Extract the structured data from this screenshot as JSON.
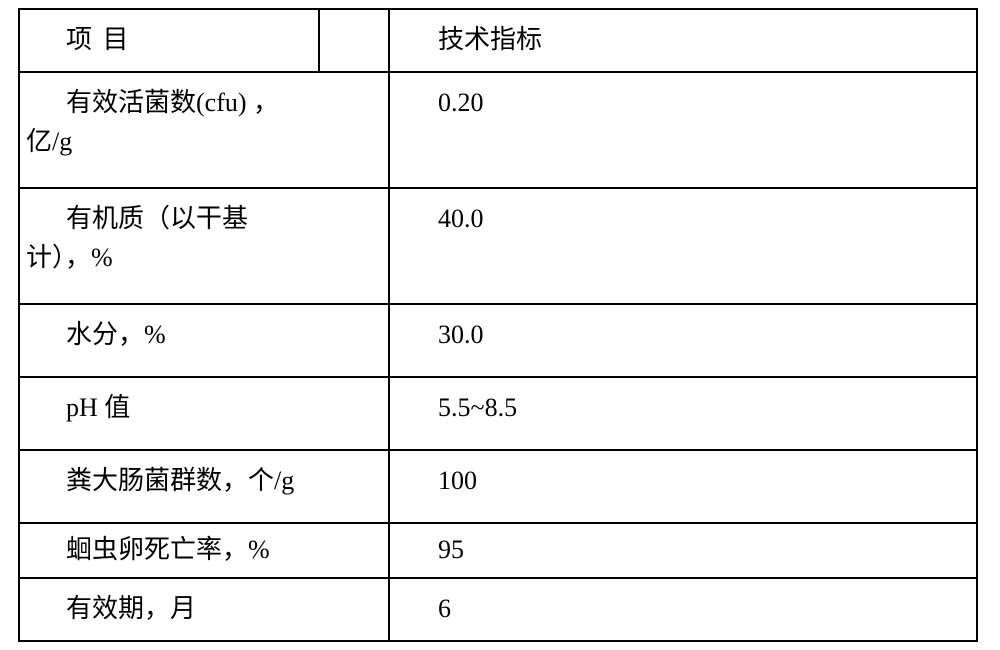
{
  "table": {
    "columns": {
      "col1_width": 300,
      "col2_width": 70,
      "col3_width": 588
    },
    "header": {
      "col1": "项 目",
      "col3": "技术指标"
    },
    "rows": [
      {
        "label_line1": "有效活菌数(cfu) ，",
        "label_line2": "亿/g",
        "value": "0.20"
      },
      {
        "label_line1": "有机质（以干基",
        "label_line2": "计），%",
        "value": "40.0"
      },
      {
        "label": "水分，%",
        "value": "30.0"
      },
      {
        "label": "pH 值",
        "value": "5.5~8.5"
      },
      {
        "label": "粪大肠菌群数，个/g",
        "value": "100"
      },
      {
        "label": "蛔虫卵死亡率，%",
        "value": "95"
      },
      {
        "label": "有效期，月",
        "value": "6"
      }
    ],
    "style": {
      "border_color": "#000000",
      "border_width": 2,
      "background_color": "#ffffff",
      "text_color": "#000000",
      "font_size": 26,
      "font_family": "SimSun"
    }
  }
}
